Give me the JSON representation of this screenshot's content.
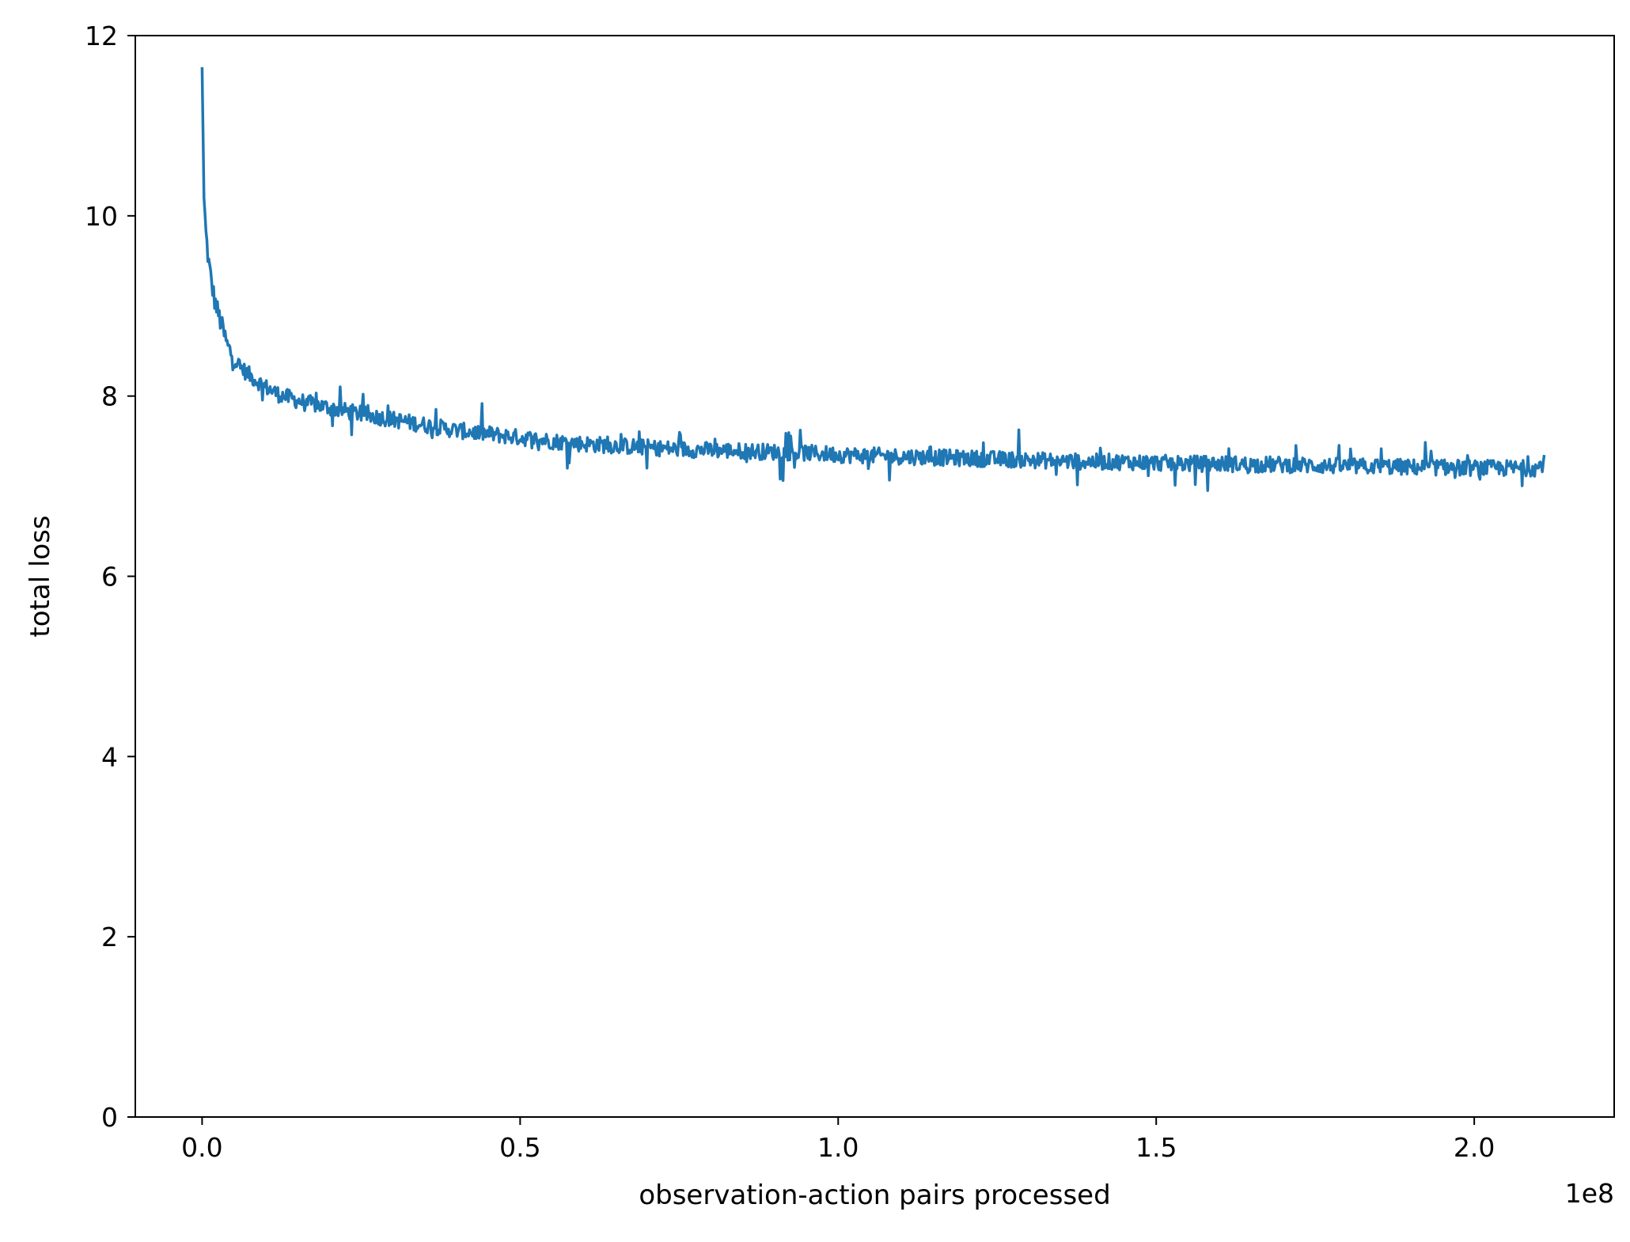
{
  "chart_data": {
    "type": "line",
    "title": "",
    "xlabel": "observation-action pairs processed",
    "ylabel": "total loss",
    "x_offset_text": "1e8",
    "xlim": [
      -0.105,
      2.22
    ],
    "ylim": [
      0,
      12
    ],
    "x_ticks": [
      0.0,
      0.5,
      1.0,
      1.5,
      2.0
    ],
    "x_tick_labels": [
      "0.0",
      "0.5",
      "1.0",
      "1.5",
      "2.0"
    ],
    "y_ticks": [
      0,
      2,
      4,
      6,
      8,
      10,
      12
    ],
    "y_tick_labels": [
      "0",
      "2",
      "4",
      "6",
      "8",
      "10",
      "12"
    ],
    "x_scale_note": "x values in units of 1e8",
    "grid": false,
    "series": [
      {
        "color": "#1f77b4",
        "x": [
          0.0,
          0.003,
          0.006,
          0.01,
          0.015,
          0.02,
          0.03,
          0.04,
          0.05,
          0.06,
          0.08,
          0.1,
          0.12,
          0.15,
          0.2,
          0.25,
          0.3,
          0.35,
          0.4,
          0.45,
          0.5,
          0.55,
          0.6,
          0.65,
          0.7,
          0.75,
          0.8,
          0.85,
          0.9,
          0.95,
          1.0,
          1.05,
          1.1,
          1.15,
          1.2,
          1.25,
          1.3,
          1.35,
          1.4,
          1.45,
          1.5,
          1.55,
          1.6,
          1.65,
          1.7,
          1.75,
          1.8,
          1.85,
          1.9,
          1.95,
          2.0,
          2.05,
          2.1,
          2.11
        ],
        "y": [
          11.65,
          10.2,
          9.8,
          9.5,
          9.25,
          9.05,
          8.8,
          8.55,
          8.42,
          8.32,
          8.2,
          8.1,
          8.02,
          7.95,
          7.87,
          7.8,
          7.74,
          7.68,
          7.62,
          7.58,
          7.54,
          7.5,
          7.47,
          7.45,
          7.43,
          7.41,
          7.4,
          7.39,
          7.38,
          7.37,
          7.35,
          7.34,
          7.33,
          7.32,
          7.31,
          7.3,
          7.29,
          7.28,
          7.27,
          7.27,
          7.26,
          7.25,
          7.25,
          7.24,
          7.24,
          7.23,
          7.22,
          7.22,
          7.21,
          7.21,
          7.2,
          7.2,
          7.2,
          7.27
        ]
      }
    ]
  }
}
